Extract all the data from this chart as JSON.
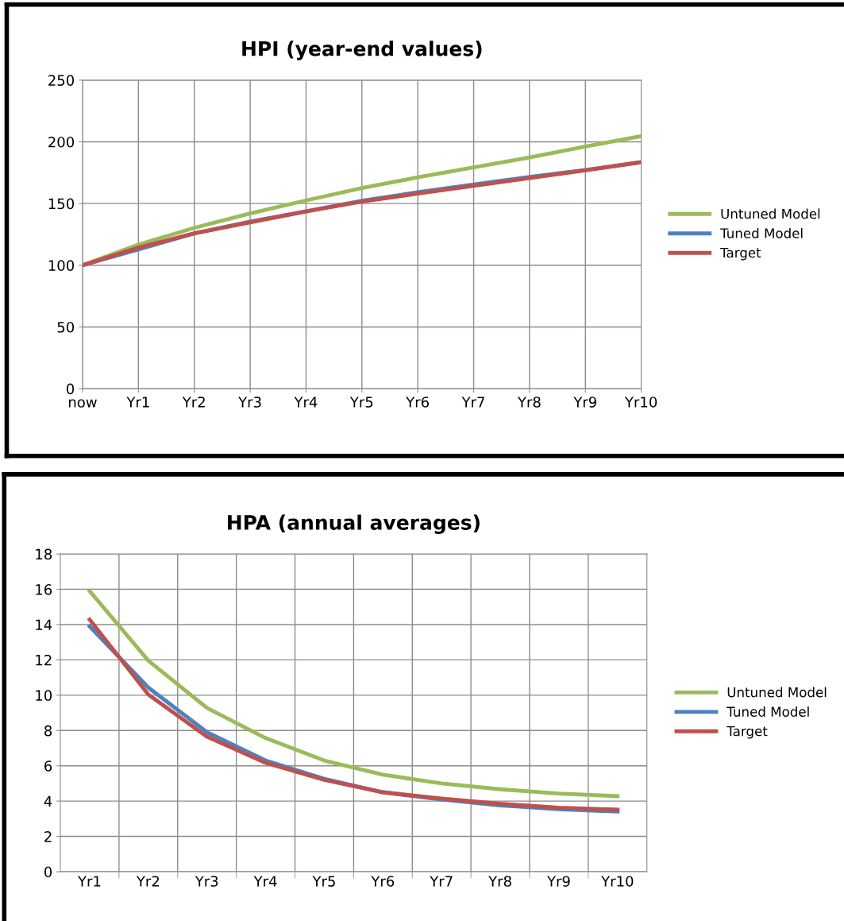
{
  "chart_data": [
    {
      "type": "line",
      "title": "HPI (year-end values)",
      "categories": [
        "now",
        "Yr1",
        "Yr2",
        "Yr3",
        "Yr4",
        "Yr5",
        "Yr6",
        "Yr7",
        "Yr8",
        "Yr9",
        "Yr10"
      ],
      "series": [
        {
          "name": "Untuned Model",
          "color": "#9bbb59",
          "values": [
            100,
            116.7,
            130.3,
            142,
            152.5,
            162.5,
            171.2,
            179.3,
            187.4,
            196.2,
            204.6
          ]
        },
        {
          "name": "Tuned Model",
          "color": "#4f81bd",
          "values": [
            100,
            112.8,
            125.8,
            135.4,
            143.8,
            152.2,
            159.1,
            165.5,
            171.5,
            177.2,
            183.5
          ]
        },
        {
          "name": "Target",
          "color": "#c0504d",
          "values": [
            100,
            114.3,
            125.8,
            134.8,
            143.5,
            151.6,
            158,
            164.3,
            170.6,
            176.9,
            183.5
          ]
        }
      ],
      "ylim": [
        0,
        250
      ],
      "yticks": [
        0,
        50,
        100,
        150,
        200,
        250
      ],
      "grid": true,
      "legend": "right",
      "marker": "none",
      "line_style": "solid"
    },
    {
      "type": "line",
      "title": "HPA (annual averages)",
      "categories": [
        "Yr1",
        "Yr2",
        "Yr3",
        "Yr4",
        "Yr5",
        "Yr6",
        "Yr7",
        "Yr8",
        "Yr9",
        "Yr10"
      ],
      "series": [
        {
          "name": "Untuned Model",
          "color": "#9bbb59",
          "values": [
            15.9,
            11.96,
            9.28,
            7.57,
            6.3,
            5.5,
            5.0,
            4.67,
            4.43,
            4.28
          ]
        },
        {
          "name": "Tuned Model",
          "color": "#4f81bd",
          "values": [
            13.9,
            10.43,
            7.9,
            6.3,
            5.26,
            4.5,
            4.09,
            3.76,
            3.54,
            3.41
          ]
        },
        {
          "name": "Target",
          "color": "#c0504d",
          "values": [
            14.28,
            10.04,
            7.65,
            6.17,
            5.2,
            4.5,
            4.15,
            3.85,
            3.63,
            3.52
          ]
        }
      ],
      "ylim": [
        0,
        18
      ],
      "yticks": [
        0,
        2,
        4,
        6,
        8,
        10,
        12,
        14,
        16,
        18
      ],
      "grid": true,
      "legend": "right",
      "marker": "none",
      "line_style": "solid"
    }
  ]
}
